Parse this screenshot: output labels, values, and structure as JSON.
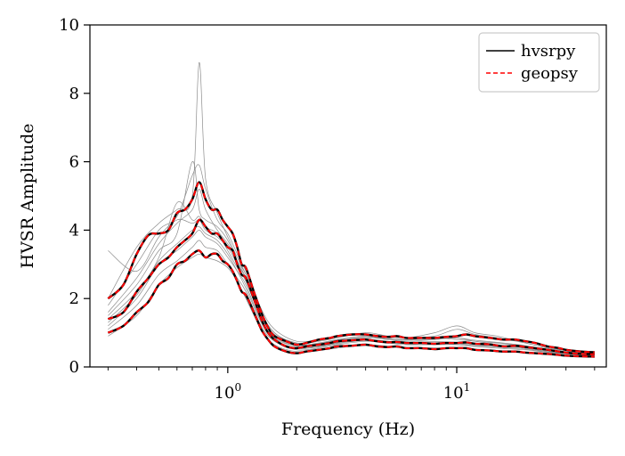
{
  "chart_data": {
    "type": "line",
    "xscale": "log",
    "xlabel": "Frequency (Hz)",
    "ylabel": "HVSR Amplitude",
    "xlim": [
      0.25,
      45
    ],
    "ylim": [
      0,
      10
    ],
    "yticks": [
      0,
      2,
      4,
      6,
      8,
      10
    ],
    "xticks_major": [
      {
        "value": 1,
        "base": "10",
        "exp": "0"
      },
      {
        "value": 10,
        "base": "10",
        "exp": "1"
      }
    ],
    "grid": false,
    "legend": {
      "placement": "top-right",
      "entries": [
        {
          "label": "hvsrpy",
          "color": "#000000",
          "dash": "solid"
        },
        {
          "label": "geopsy",
          "color": "#ff0000",
          "dash": "dashed"
        }
      ]
    },
    "curve_freq": [
      0.3,
      0.35,
      0.4,
      0.45,
      0.5,
      0.55,
      0.6,
      0.65,
      0.7,
      0.75,
      0.8,
      0.85,
      0.9,
      0.95,
      1.0,
      1.05,
      1.1,
      1.15,
      1.2,
      1.3,
      1.4,
      1.5,
      1.6,
      1.8,
      2.0,
      2.2,
      2.5,
      2.8,
      3.0,
      3.5,
      4.0,
      4.5,
      5.0,
      5.5,
      6.0,
      7.0,
      8.0,
      9.0,
      10.0,
      11.0,
      12.0,
      14.0,
      16.0,
      18.0,
      20.0,
      22.0,
      25.0,
      28.0,
      30.0,
      35.0,
      40.0
    ],
    "series": [
      {
        "name": "hvsrpy",
        "color": "#000000",
        "dash": "solid",
        "lines": [
          [
            1.4,
            1.6,
            2.2,
            2.6,
            3.0,
            3.2,
            3.5,
            3.7,
            3.9,
            4.3,
            4.1,
            3.9,
            3.9,
            3.7,
            3.5,
            3.4,
            3.0,
            2.7,
            2.6,
            2.0,
            1.4,
            1.0,
            0.8,
            0.6,
            0.55,
            0.6,
            0.65,
            0.7,
            0.75,
            0.78,
            0.8,
            0.75,
            0.72,
            0.73,
            0.7,
            0.7,
            0.68,
            0.7,
            0.7,
            0.72,
            0.68,
            0.66,
            0.6,
            0.62,
            0.58,
            0.55,
            0.5,
            0.45,
            0.42,
            0.38,
            0.37
          ],
          [
            2.0,
            2.4,
            3.3,
            3.85,
            3.9,
            4.0,
            4.5,
            4.6,
            4.9,
            5.4,
            4.9,
            4.6,
            4.6,
            4.3,
            4.1,
            3.9,
            3.5,
            3.0,
            2.9,
            2.2,
            1.6,
            1.15,
            0.9,
            0.75,
            0.65,
            0.7,
            0.8,
            0.85,
            0.9,
            0.95,
            0.95,
            0.9,
            0.88,
            0.9,
            0.85,
            0.85,
            0.85,
            0.88,
            0.9,
            0.95,
            0.9,
            0.85,
            0.8,
            0.8,
            0.75,
            0.7,
            0.6,
            0.55,
            0.5,
            0.45,
            0.43
          ],
          [
            1.0,
            1.2,
            1.6,
            1.9,
            2.4,
            2.6,
            3.0,
            3.1,
            3.3,
            3.4,
            3.2,
            3.3,
            3.3,
            3.1,
            3.0,
            2.8,
            2.5,
            2.2,
            2.1,
            1.6,
            1.1,
            0.8,
            0.6,
            0.45,
            0.4,
            0.45,
            0.5,
            0.55,
            0.6,
            0.62,
            0.65,
            0.6,
            0.58,
            0.6,
            0.55,
            0.55,
            0.52,
            0.55,
            0.55,
            0.55,
            0.5,
            0.48,
            0.45,
            0.45,
            0.42,
            0.4,
            0.38,
            0.35,
            0.33,
            0.31,
            0.3
          ]
        ]
      },
      {
        "name": "geopsy",
        "color": "#ff0000",
        "dash": "dashed",
        "lines": [
          [
            1.4,
            1.6,
            2.2,
            2.6,
            3.0,
            3.2,
            3.5,
            3.7,
            3.9,
            4.3,
            4.1,
            3.9,
            3.9,
            3.7,
            3.5,
            3.4,
            3.0,
            2.7,
            2.6,
            2.0,
            1.4,
            1.0,
            0.8,
            0.6,
            0.55,
            0.6,
            0.65,
            0.7,
            0.75,
            0.78,
            0.8,
            0.75,
            0.72,
            0.73,
            0.7,
            0.7,
            0.68,
            0.7,
            0.7,
            0.72,
            0.68,
            0.66,
            0.6,
            0.62,
            0.58,
            0.55,
            0.5,
            0.45,
            0.42,
            0.38,
            0.37
          ],
          [
            2.0,
            2.4,
            3.3,
            3.85,
            3.9,
            4.0,
            4.5,
            4.6,
            4.9,
            5.4,
            4.9,
            4.6,
            4.6,
            4.3,
            4.1,
            3.9,
            3.5,
            3.0,
            2.9,
            2.2,
            1.6,
            1.15,
            0.9,
            0.75,
            0.65,
            0.7,
            0.8,
            0.85,
            0.9,
            0.95,
            0.95,
            0.9,
            0.88,
            0.9,
            0.85,
            0.85,
            0.85,
            0.88,
            0.9,
            0.95,
            0.9,
            0.85,
            0.8,
            0.8,
            0.75,
            0.7,
            0.6,
            0.55,
            0.5,
            0.45,
            0.43
          ],
          [
            1.0,
            1.2,
            1.6,
            1.9,
            2.4,
            2.6,
            3.0,
            3.1,
            3.3,
            3.4,
            3.2,
            3.3,
            3.3,
            3.1,
            3.0,
            2.8,
            2.5,
            2.2,
            2.1,
            1.6,
            1.1,
            0.8,
            0.6,
            0.45,
            0.4,
            0.45,
            0.5,
            0.55,
            0.6,
            0.62,
            0.65,
            0.6,
            0.58,
            0.6,
            0.55,
            0.55,
            0.52,
            0.55,
            0.55,
            0.55,
            0.5,
            0.48,
            0.45,
            0.45,
            0.42,
            0.4,
            0.38,
            0.35,
            0.33,
            0.31,
            0.3
          ]
        ]
      }
    ],
    "window_curves": {
      "color": "#8c8c8c",
      "freq": [
        0.3,
        0.4,
        0.5,
        0.6,
        0.7,
        0.75,
        0.8,
        0.9,
        1.0,
        1.1,
        1.2,
        1.4,
        1.6,
        2.0,
        2.5,
        3.0,
        4.0,
        5.0,
        6.0,
        8.0,
        10.0,
        12.0,
        15.0,
        20.0,
        25.0,
        30.0,
        40.0
      ],
      "lines": [
        [
          1.2,
          2.0,
          3.0,
          3.4,
          3.8,
          4.0,
          3.8,
          3.6,
          3.2,
          2.8,
          2.4,
          1.3,
          0.8,
          0.55,
          0.6,
          0.7,
          0.8,
          0.75,
          0.7,
          0.7,
          0.7,
          0.65,
          0.6,
          0.55,
          0.45,
          0.4,
          0.35
        ],
        [
          1.6,
          2.6,
          3.6,
          4.2,
          4.6,
          5.2,
          4.6,
          4.0,
          3.6,
          3.1,
          2.6,
          1.5,
          0.9,
          0.6,
          0.65,
          0.75,
          0.85,
          0.8,
          0.75,
          0.8,
          0.85,
          0.75,
          0.7,
          0.6,
          0.5,
          0.45,
          0.4
        ],
        [
          0.9,
          1.5,
          2.4,
          2.9,
          3.2,
          3.3,
          3.2,
          3.1,
          2.9,
          2.5,
          2.0,
          1.1,
          0.65,
          0.45,
          0.5,
          0.55,
          0.65,
          0.6,
          0.55,
          0.55,
          0.55,
          0.5,
          0.45,
          0.42,
          0.38,
          0.34,
          0.3
        ],
        [
          2.0,
          3.5,
          4.2,
          4.6,
          5.0,
          8.9,
          5.5,
          4.5,
          3.8,
          3.2,
          2.7,
          1.6,
          1.0,
          0.7,
          0.75,
          0.85,
          1.0,
          0.9,
          0.85,
          0.9,
          1.1,
          0.95,
          0.85,
          0.7,
          0.55,
          0.5,
          0.45
        ],
        [
          1.4,
          2.2,
          3.2,
          4.8,
          4.3,
          4.4,
          4.1,
          3.9,
          3.4,
          2.9,
          2.5,
          1.4,
          0.85,
          0.6,
          0.62,
          0.72,
          0.78,
          0.75,
          0.72,
          0.74,
          0.72,
          0.68,
          0.64,
          0.58,
          0.48,
          0.42,
          0.38
        ],
        [
          1.1,
          1.8,
          2.7,
          3.1,
          3.5,
          3.7,
          3.5,
          3.4,
          3.0,
          2.6,
          2.2,
          1.2,
          0.75,
          0.5,
          0.55,
          0.65,
          0.75,
          0.7,
          0.65,
          0.65,
          0.65,
          0.6,
          0.55,
          0.5,
          0.42,
          0.38,
          0.34
        ],
        [
          1.8,
          3.0,
          4.0,
          4.4,
          5.6,
          5.9,
          5.2,
          4.3,
          3.9,
          3.3,
          2.8,
          1.7,
          1.1,
          0.75,
          0.8,
          0.9,
          0.95,
          0.9,
          0.85,
          1.0,
          1.2,
          1.0,
          0.9,
          0.7,
          0.55,
          0.48,
          0.42
        ],
        [
          1.3,
          2.1,
          3.1,
          3.6,
          4.0,
          4.1,
          3.9,
          3.7,
          3.3,
          2.8,
          2.3,
          1.3,
          0.8,
          0.55,
          0.58,
          0.68,
          0.78,
          0.72,
          0.68,
          0.68,
          0.68,
          0.62,
          0.58,
          0.52,
          0.44,
          0.4,
          0.36
        ],
        [
          3.4,
          2.8,
          3.8,
          4.3,
          4.2,
          4.3,
          4.0,
          3.8,
          3.5,
          3.0,
          2.6,
          1.5,
          0.95,
          0.65,
          0.7,
          0.8,
          0.9,
          0.85,
          0.8,
          0.85,
          0.8,
          0.75,
          0.65,
          0.55,
          0.45,
          0.4,
          0.38
        ],
        [
          1.5,
          2.4,
          3.4,
          3.9,
          6.0,
          4.6,
          4.3,
          4.1,
          3.7,
          3.1,
          2.7,
          1.6,
          1.0,
          0.65,
          0.68,
          0.78,
          0.88,
          0.82,
          0.78,
          0.82,
          0.85,
          0.78,
          0.72,
          0.62,
          0.5,
          0.44,
          0.4
        ]
      ]
    }
  }
}
